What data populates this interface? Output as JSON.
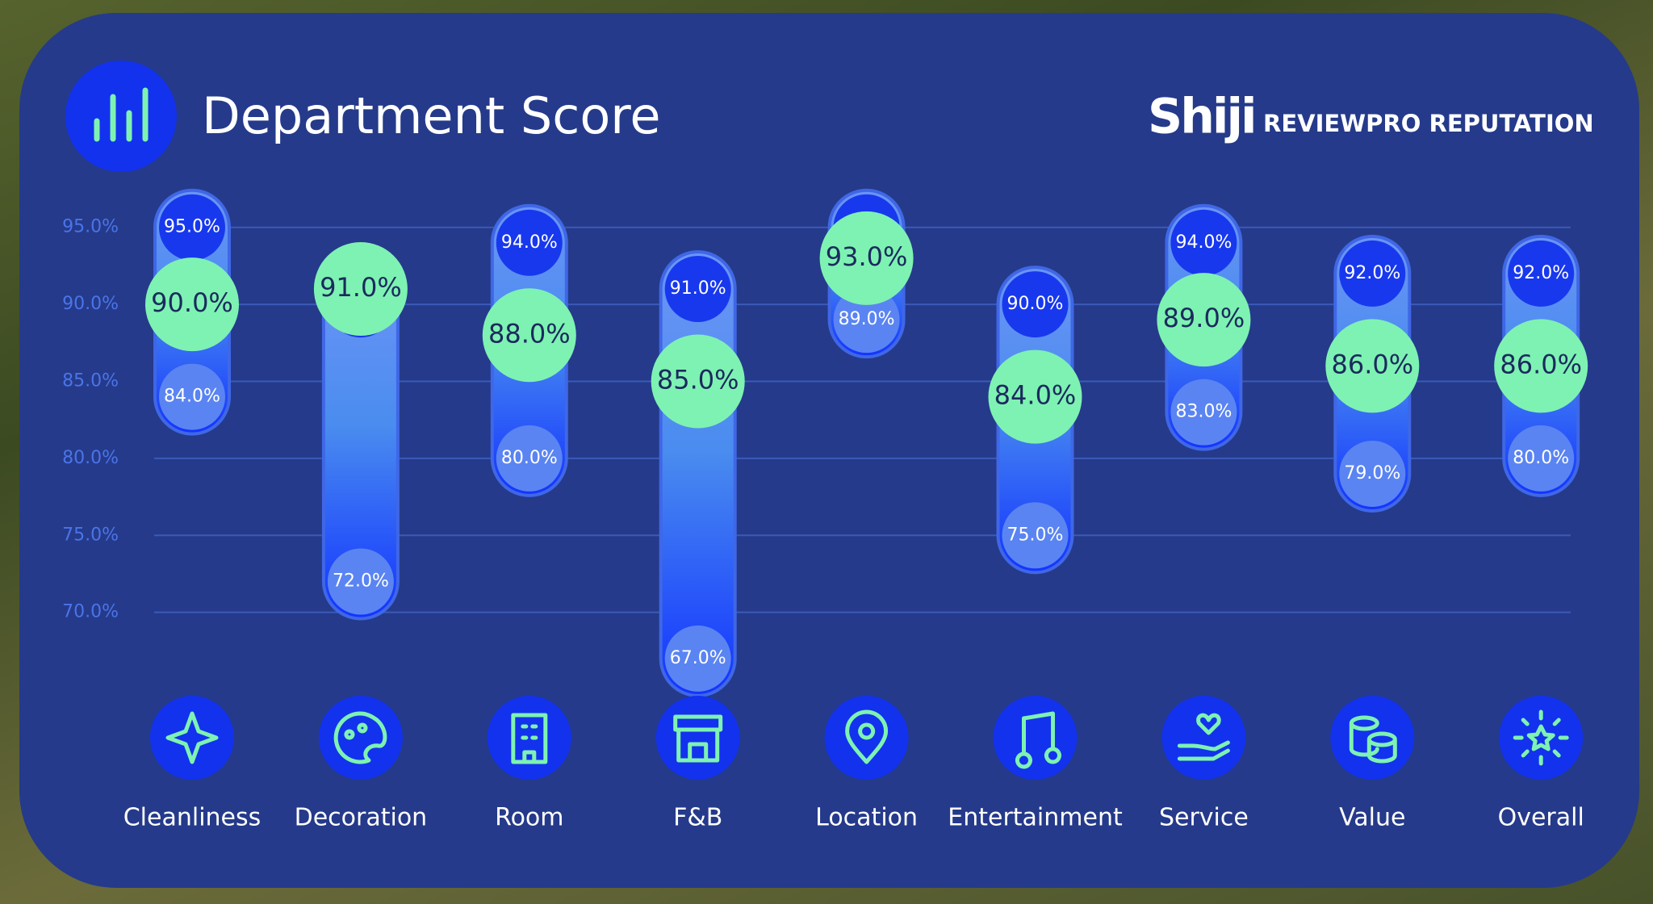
{
  "header": {
    "logo": "Shiji",
    "brand": "REVIEWPRO REPUTATION"
  },
  "chart_data": {
    "type": "range",
    "title": "Department Score",
    "categories": [
      "Cleanliness",
      "Decoration",
      "Room",
      "F&B",
      "Location",
      "Entertainment",
      "Service",
      "Value",
      "Overall"
    ],
    "series": [
      {
        "color": "#1838ee",
        "values": [
          95,
          90,
          94,
          91,
          95,
          90,
          94,
          92,
          92
        ],
        "value_labels": [
          "95.0%",
          null,
          "94.0%",
          "91.0%",
          null,
          "90.0%",
          "94.0%",
          "92.0%",
          "92.0%"
        ]
      },
      {
        "color": "#7ef2b2",
        "values": [
          90,
          91,
          88,
          85,
          93,
          84,
          89,
          86,
          86
        ],
        "value_labels": [
          "90.0%",
          "91.0%",
          "88.0%",
          "85.0%",
          "93.0%",
          "84.0%",
          "89.0%",
          "86.0%",
          "86.0%"
        ]
      },
      {
        "color": "#5a84f2",
        "values": [
          84,
          72,
          80,
          67,
          89,
          75,
          83,
          79,
          80
        ],
        "value_labels": [
          "84.0%",
          "72.0%",
          "80.0%",
          "67.0%",
          "89.0%",
          "75.0%",
          "83.0%",
          "79.0%",
          "80.0%"
        ]
      }
    ],
    "ylim": [
      66,
      97.5
    ],
    "yticks": [
      {
        "value": 70,
        "label": "70.0%"
      },
      {
        "value": 75,
        "label": "75.0%"
      },
      {
        "value": 80,
        "label": "80.0%"
      },
      {
        "value": 85,
        "label": "85.0%"
      },
      {
        "value": 90,
        "label": "90.0%"
      },
      {
        "value": 95,
        "label": "95.0%"
      }
    ],
    "grid": true
  }
}
